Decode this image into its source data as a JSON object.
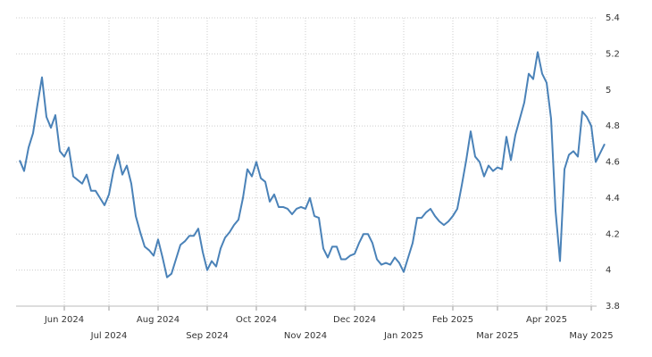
{
  "chart_data": {
    "type": "line",
    "categories": [
      null,
      null,
      null,
      null,
      null,
      null,
      null,
      null,
      null,
      null,
      "Jun 2024",
      null,
      null,
      null,
      null,
      null,
      null,
      null,
      null,
      null,
      "Jul 2024",
      null,
      null,
      null,
      null,
      null,
      null,
      null,
      null,
      null,
      null,
      "Aug 2024",
      null,
      null,
      null,
      null,
      null,
      null,
      null,
      null,
      null,
      null,
      "Sep 2024",
      null,
      null,
      null,
      null,
      null,
      null,
      null,
      null,
      null,
      null,
      "Oct 2024",
      null,
      null,
      null,
      null,
      null,
      null,
      null,
      null,
      null,
      null,
      "Nov 2024",
      null,
      null,
      null,
      null,
      null,
      null,
      null,
      null,
      null,
      null,
      "Dec 2024",
      null,
      null,
      null,
      null,
      null,
      null,
      null,
      null,
      null,
      null,
      "Jan 2025",
      null,
      null,
      null,
      null,
      null,
      null,
      null,
      null,
      null,
      null,
      "Feb 2025",
      null,
      null,
      null,
      null,
      null,
      null,
      null,
      null,
      null,
      "Mar 2025",
      null,
      null,
      null,
      null,
      null,
      null,
      null,
      null,
      null,
      null,
      "Apr 2025",
      null,
      null,
      null,
      null,
      null,
      null,
      null,
      null,
      null,
      "May 2025",
      null,
      null,
      null
    ],
    "values": [
      4.61,
      4.55,
      4.68,
      4.76,
      4.92,
      5.07,
      4.85,
      4.79,
      4.86,
      4.66,
      4.63,
      4.68,
      4.52,
      4.5,
      4.48,
      4.53,
      4.44,
      4.44,
      4.4,
      4.36,
      4.42,
      4.55,
      4.64,
      4.53,
      4.58,
      4.48,
      4.3,
      4.21,
      4.13,
      4.11,
      4.08,
      4.17,
      4.07,
      3.96,
      3.98,
      4.06,
      4.14,
      4.16,
      4.19,
      4.19,
      4.23,
      4.1,
      4.0,
      4.05,
      4.02,
      4.12,
      4.18,
      4.21,
      4.25,
      4.28,
      4.4,
      4.56,
      4.52,
      4.6,
      4.51,
      4.49,
      4.38,
      4.42,
      4.35,
      4.35,
      4.34,
      4.31,
      4.34,
      4.35,
      4.34,
      4.4,
      4.3,
      4.29,
      4.12,
      4.07,
      4.13,
      4.13,
      4.06,
      4.06,
      4.08,
      4.09,
      4.15,
      4.2,
      4.2,
      4.15,
      4.06,
      4.03,
      4.04,
      4.03,
      4.07,
      4.04,
      3.99,
      4.07,
      4.15,
      4.29,
      4.29,
      4.32,
      4.34,
      4.3,
      4.27,
      4.25,
      4.27,
      4.3,
      4.34,
      4.47,
      4.61,
      4.77,
      4.63,
      4.6,
      4.52,
      4.58,
      4.55,
      4.57,
      4.56,
      4.74,
      4.61,
      4.75,
      4.84,
      4.93,
      5.09,
      5.06,
      5.21,
      5.09,
      5.04,
      4.84,
      4.33,
      4.05,
      4.56,
      4.64,
      4.66,
      4.63,
      4.88,
      4.85,
      4.8,
      4.6,
      4.65,
      4.7
    ],
    "color": "#4a82b8",
    "ylim": [
      3.8,
      5.4
    ],
    "yticks": [
      3.8,
      4,
      4.2,
      4.4,
      4.6,
      4.8,
      5,
      5.2,
      5.4
    ],
    "grid": true
  }
}
